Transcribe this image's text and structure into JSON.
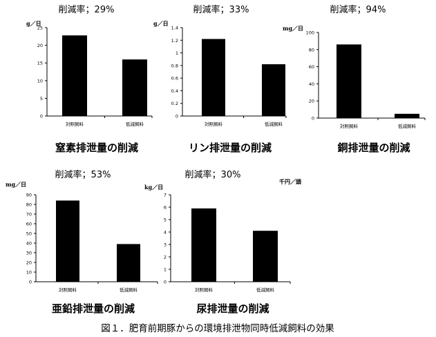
{
  "caption": "図１．肥育前期豚からの環境排泄物同時低減飼料の効果",
  "extra_unit_label": "千円／頭",
  "chart_data": [
    {
      "type": "bar",
      "title": "窒素排泄量の削減",
      "reduction_label": "削減率；29%",
      "unit": "g／日",
      "categories": [
        "対照飼料",
        "低減飼料"
      ],
      "values": [
        22.8,
        16.0
      ],
      "ylim": [
        0,
        25
      ],
      "yticks": [
        "0",
        "5",
        "10",
        "15",
        "20",
        "25"
      ]
    },
    {
      "type": "bar",
      "title": "リン排泄量の削減",
      "reduction_label": "削減率；33%",
      "unit": "g／日",
      "categories": [
        "対照飼料",
        "低減飼料"
      ],
      "values": [
        1.22,
        0.82
      ],
      "ylim": [
        0,
        1.4
      ],
      "yticks": [
        "0",
        "0.2",
        "0.4",
        "0.6",
        "0.8",
        "1",
        "1.2",
        "1.4"
      ]
    },
    {
      "type": "bar",
      "title": "銅排泄量の削減",
      "reduction_label": "削減率；94%",
      "unit": "mg／日",
      "categories": [
        "対照飼料",
        "低減飼料"
      ],
      "values": [
        86,
        5
      ],
      "ylim": [
        0,
        100
      ],
      "yticks": [
        "0",
        "20",
        "40",
        "60",
        "80",
        "100"
      ]
    },
    {
      "type": "bar",
      "title": "亜鉛排泄量の削減",
      "reduction_label": "削減率；53%",
      "unit": "mg／日",
      "categories": [
        "対照飼料",
        "低減飼料"
      ],
      "values": [
        84,
        39
      ],
      "ylim": [
        0,
        90
      ],
      "yticks": [
        "0",
        "10",
        "20",
        "30",
        "40",
        "50",
        "60",
        "70",
        "80",
        "90"
      ]
    },
    {
      "type": "bar",
      "title": "尿排泄量の削減",
      "reduction_label": "削減率；30%",
      "unit": "kg／日",
      "categories": [
        "対照飼料",
        "低減飼料"
      ],
      "values": [
        5.9,
        4.1
      ],
      "ylim": [
        0,
        7
      ],
      "yticks": [
        "0",
        "1",
        "2",
        "3",
        "4",
        "5",
        "6",
        "7"
      ]
    }
  ]
}
